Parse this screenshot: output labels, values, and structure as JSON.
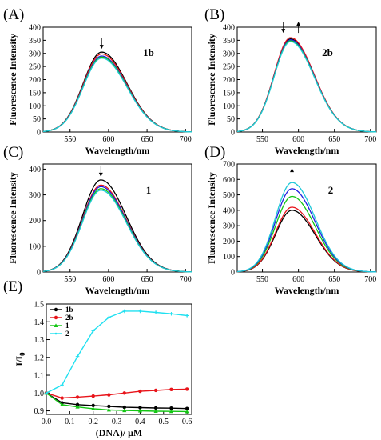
{
  "chart_data": [
    {
      "id": "A",
      "type": "line",
      "panel_label": "(A)",
      "compound_label": "1b",
      "xlabel": "Wavelength/nm",
      "ylabel": "Fluorescence Intensity",
      "xlim": [
        515,
        708
      ],
      "ylim": [
        0,
        400
      ],
      "xticks": [
        550,
        600,
        650,
        700
      ],
      "yticks": [
        0,
        50,
        100,
        150,
        200,
        250,
        300,
        350,
        400
      ],
      "peak_wavelength": 591,
      "sigma_left": 24,
      "sigma_right": 33,
      "annotation_arrow": "down",
      "series": [
        {
          "peak": 305,
          "color": "#000000"
        },
        {
          "peak": 298,
          "color": "#e8141a"
        },
        {
          "peak": 290,
          "color": "#1f1fe0"
        },
        {
          "peak": 286,
          "color": "#13c613"
        },
        {
          "peak": 282,
          "color": "#20c8d8"
        }
      ]
    },
    {
      "id": "B",
      "type": "line",
      "panel_label": "(B)",
      "compound_label": "2b",
      "xlabel": "Wavelength/nm",
      "ylabel": "Fluorescence Intensity",
      "xlim": [
        515,
        708
      ],
      "ylim": [
        0,
        400
      ],
      "xticks": [
        550,
        600,
        650,
        700
      ],
      "yticks": [
        0,
        50,
        100,
        150,
        200,
        250,
        300,
        350,
        400
      ],
      "peak_wavelength": 589,
      "sigma_left": 23,
      "sigma_right": 33,
      "annotation_arrow": "down-up",
      "series": [
        {
          "peak": 355,
          "color": "#000000"
        },
        {
          "peak": 360,
          "color": "#e8141a"
        },
        {
          "peak": 352,
          "color": "#1f1fe0"
        },
        {
          "peak": 348,
          "color": "#13c613"
        },
        {
          "peak": 345,
          "color": "#20c8d8"
        }
      ]
    },
    {
      "id": "C",
      "type": "line",
      "panel_label": "(C)",
      "compound_label": "1",
      "xlabel": "Wavelength/nm",
      "ylabel": "Fluorescence Intensity",
      "xlim": [
        515,
        708
      ],
      "ylim": [
        0,
        420
      ],
      "xticks": [
        550,
        600,
        650,
        700
      ],
      "yticks": [
        0,
        100,
        200,
        300,
        400
      ],
      "peak_wavelength": 590,
      "sigma_left": 24,
      "sigma_right": 33,
      "annotation_arrow": "down",
      "series": [
        {
          "peak": 358,
          "color": "#000000"
        },
        {
          "peak": 338,
          "color": "#e8141a"
        },
        {
          "peak": 332,
          "color": "#1f1fe0"
        },
        {
          "peak": 324,
          "color": "#13c613"
        },
        {
          "peak": 318,
          "color": "#20c8d8"
        }
      ]
    },
    {
      "id": "D",
      "type": "line",
      "panel_label": "(D)",
      "compound_label": "2",
      "xlabel": "Wavelength/nm",
      "ylabel": "Fluorescence Intensity",
      "xlim": [
        515,
        708
      ],
      "ylim": [
        0,
        700
      ],
      "xticks": [
        550,
        600,
        650,
        700
      ],
      "yticks": [
        0,
        100,
        200,
        300,
        400,
        500,
        600,
        700
      ],
      "peak_wavelength": 591,
      "sigma_left": 23,
      "sigma_right": 32,
      "annotation_arrow": "up",
      "series": [
        {
          "peak": 400,
          "color": "#000000"
        },
        {
          "peak": 420,
          "color": "#e8141a"
        },
        {
          "peak": 490,
          "color": "#13c613"
        },
        {
          "peak": 540,
          "color": "#1f1fe0"
        },
        {
          "peak": 580,
          "color": "#20c8d8"
        }
      ]
    },
    {
      "id": "E",
      "type": "line",
      "panel_label": "(E)",
      "xlabel": "(DNA)/ μM",
      "ylabel": "I/I",
      "ylabel_subscript": "0",
      "xlim": [
        0,
        0.62
      ],
      "ylim": [
        0.88,
        1.5
      ],
      "xticks": [
        "0.0",
        "0.1",
        "0.2",
        "0.3",
        "0.4",
        "0.5",
        "0.6"
      ],
      "yticks": [
        "0.9",
        "1.0",
        "1.1",
        "1.2",
        "1.3",
        "1.4",
        "1.5"
      ],
      "legend_position": "top-left",
      "series": [
        {
          "name": "1b",
          "color": "#000000",
          "x": [
            0,
            0.067,
            0.133,
            0.2,
            0.267,
            0.333,
            0.4,
            0.467,
            0.533,
            0.6
          ],
          "y": [
            1.0,
            0.945,
            0.935,
            0.93,
            0.925,
            0.92,
            0.918,
            0.916,
            0.915,
            0.913
          ]
        },
        {
          "name": "2b",
          "color": "#e8141a",
          "x": [
            0,
            0.067,
            0.133,
            0.2,
            0.267,
            0.333,
            0.4,
            0.467,
            0.533,
            0.6
          ],
          "y": [
            1.0,
            0.972,
            0.977,
            0.983,
            0.99,
            1.0,
            1.01,
            1.015,
            1.02,
            1.022
          ]
        },
        {
          "name": "1",
          "color": "#13c613",
          "x": [
            0,
            0.067,
            0.133,
            0.2,
            0.267,
            0.333,
            0.4,
            0.467,
            0.533,
            0.6
          ],
          "y": [
            1.0,
            0.935,
            0.922,
            0.912,
            0.905,
            0.902,
            0.9,
            0.898,
            0.897,
            0.896
          ]
        },
        {
          "name": "2",
          "color": "#20e0f0",
          "x": [
            0,
            0.067,
            0.133,
            0.2,
            0.267,
            0.333,
            0.4,
            0.467,
            0.533,
            0.6
          ],
          "y": [
            1.0,
            1.045,
            1.205,
            1.35,
            1.425,
            1.46,
            1.46,
            1.453,
            1.445,
            1.435
          ]
        }
      ]
    }
  ]
}
